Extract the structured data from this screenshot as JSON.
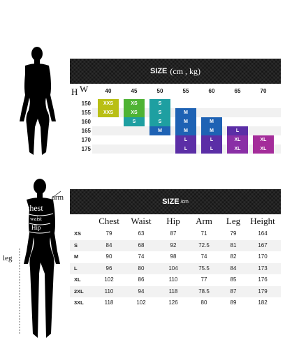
{
  "size_chart": {
    "title_strong": "SIZE",
    "title_rest": "(cm , kg)",
    "h_letter": "H",
    "w_letter": "W",
    "weights": [
      "40",
      "45",
      "50",
      "55",
      "60",
      "65",
      "70"
    ],
    "heights": [
      "150",
      "155",
      "160",
      "165",
      "170",
      "175"
    ],
    "cells": [
      {
        "row": 0,
        "col": 0,
        "label": "XXS",
        "color": "#b9bf14"
      },
      {
        "row": 0,
        "col": 1,
        "label": "XS",
        "color": "#4eb334"
      },
      {
        "row": 0,
        "col": 2,
        "label": "S",
        "color": "#1e9fa1"
      },
      {
        "row": 1,
        "col": 0,
        "label": "XXS",
        "color": "#b9bf14"
      },
      {
        "row": 1,
        "col": 1,
        "label": "XS",
        "color": "#4eb334"
      },
      {
        "row": 1,
        "col": 2,
        "label": "S",
        "color": "#1e9fa1"
      },
      {
        "row": 1,
        "col": 3,
        "label": "M",
        "color": "#1e62b4"
      },
      {
        "row": 2,
        "col": 1,
        "label": "S",
        "color": "#1e9fa1"
      },
      {
        "row": 2,
        "col": 2,
        "label": "S",
        "color": "#1e9fa1"
      },
      {
        "row": 2,
        "col": 3,
        "label": "M",
        "color": "#1e62b4"
      },
      {
        "row": 2,
        "col": 4,
        "label": "M",
        "color": "#1e62b4"
      },
      {
        "row": 3,
        "col": 2,
        "label": "M",
        "color": "#1e62b4"
      },
      {
        "row": 3,
        "col": 3,
        "label": "M",
        "color": "#1e62b4"
      },
      {
        "row": 3,
        "col": 4,
        "label": "M",
        "color": "#1e62b4"
      },
      {
        "row": 3,
        "col": 5,
        "label": "L",
        "color": "#5b2ea6"
      },
      {
        "row": 4,
        "col": 3,
        "label": "L",
        "color": "#5b2ea6"
      },
      {
        "row": 4,
        "col": 4,
        "label": "L",
        "color": "#5b2ea6"
      },
      {
        "row": 4,
        "col": 5,
        "label": "XL",
        "color": "#8a2fa6"
      },
      {
        "row": 4,
        "col": 6,
        "label": "XL",
        "color": "#a42c9a"
      },
      {
        "row": 5,
        "col": 3,
        "label": "L",
        "color": "#5b2ea6"
      },
      {
        "row": 5,
        "col": 4,
        "label": "L",
        "color": "#5b2ea6"
      },
      {
        "row": 5,
        "col": 5,
        "label": "XL",
        "color": "#8a2fa6"
      },
      {
        "row": 5,
        "col": 6,
        "label": "XL",
        "color": "#a42c9a"
      }
    ]
  },
  "measure_table": {
    "title_strong": "SIZE",
    "title_rest": "/cm",
    "columns": [
      "Chest",
      "Waist",
      "Hip",
      "Arm",
      "Leg",
      "Height"
    ],
    "rows": [
      {
        "size": "XS",
        "values": [
          "79",
          "63",
          "87",
          "71",
          "79",
          "164"
        ]
      },
      {
        "size": "S",
        "values": [
          "84",
          "68",
          "92",
          "72.5",
          "81",
          "167"
        ]
      },
      {
        "size": "M",
        "values": [
          "90",
          "74",
          "98",
          "74",
          "82",
          "170"
        ]
      },
      {
        "size": "L",
        "values": [
          "96",
          "80",
          "104",
          "75.5",
          "84",
          "173"
        ]
      },
      {
        "size": "XL",
        "values": [
          "102",
          "86",
          "110",
          "77",
          "85",
          "176"
        ]
      },
      {
        "size": "2XL",
        "values": [
          "110",
          "94",
          "118",
          "78.5",
          "87",
          "179"
        ]
      },
      {
        "size": "3XL",
        "values": [
          "118",
          "102",
          "126",
          "80",
          "89",
          "182"
        ]
      }
    ]
  },
  "body_labels": {
    "arm": "arm",
    "chest": "chest",
    "waist": "waist",
    "hip": "Hip",
    "leg": "leg"
  }
}
